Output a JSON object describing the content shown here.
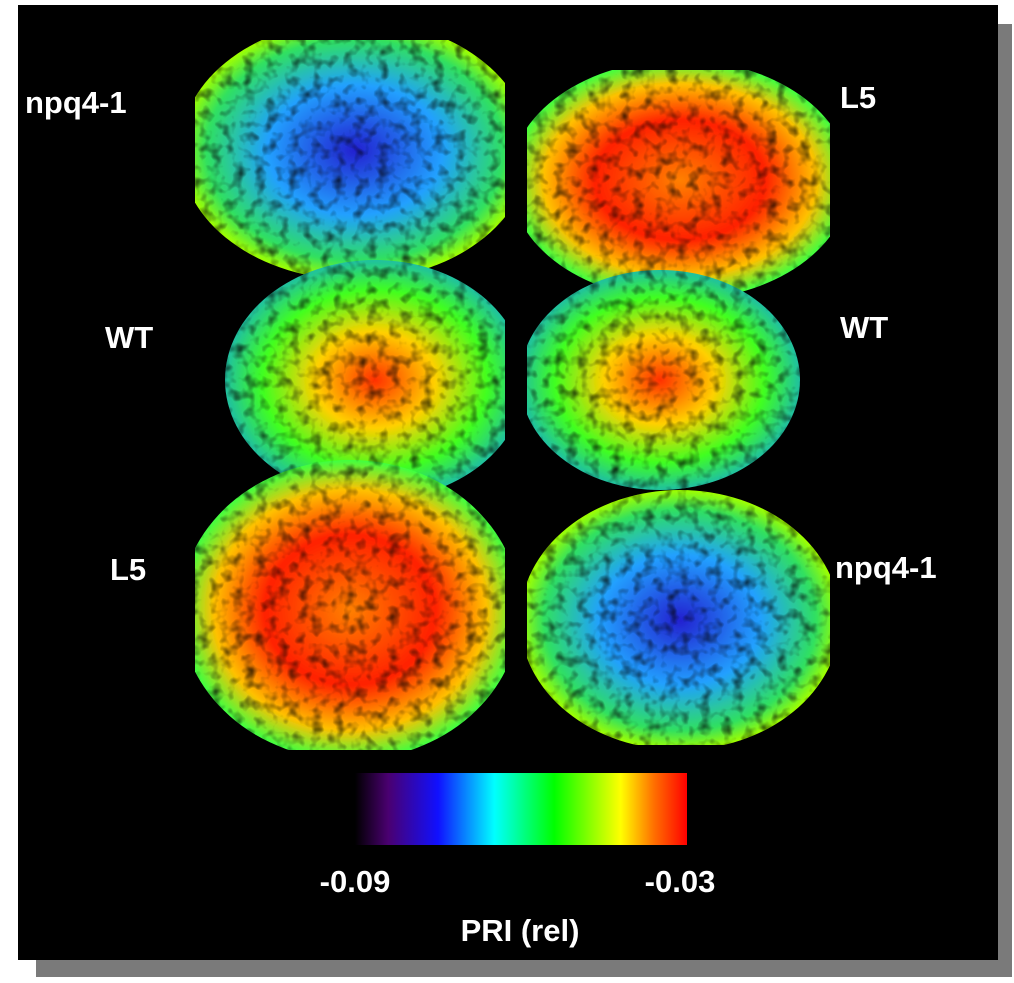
{
  "left_labels": [
    "npq4-1",
    "WT",
    "L5"
  ],
  "right_labels": [
    "L5",
    "WT",
    "npq4-1"
  ],
  "colorbar": {
    "min": -0.09,
    "max": -0.03,
    "title": "PRI (rel)"
  }
}
